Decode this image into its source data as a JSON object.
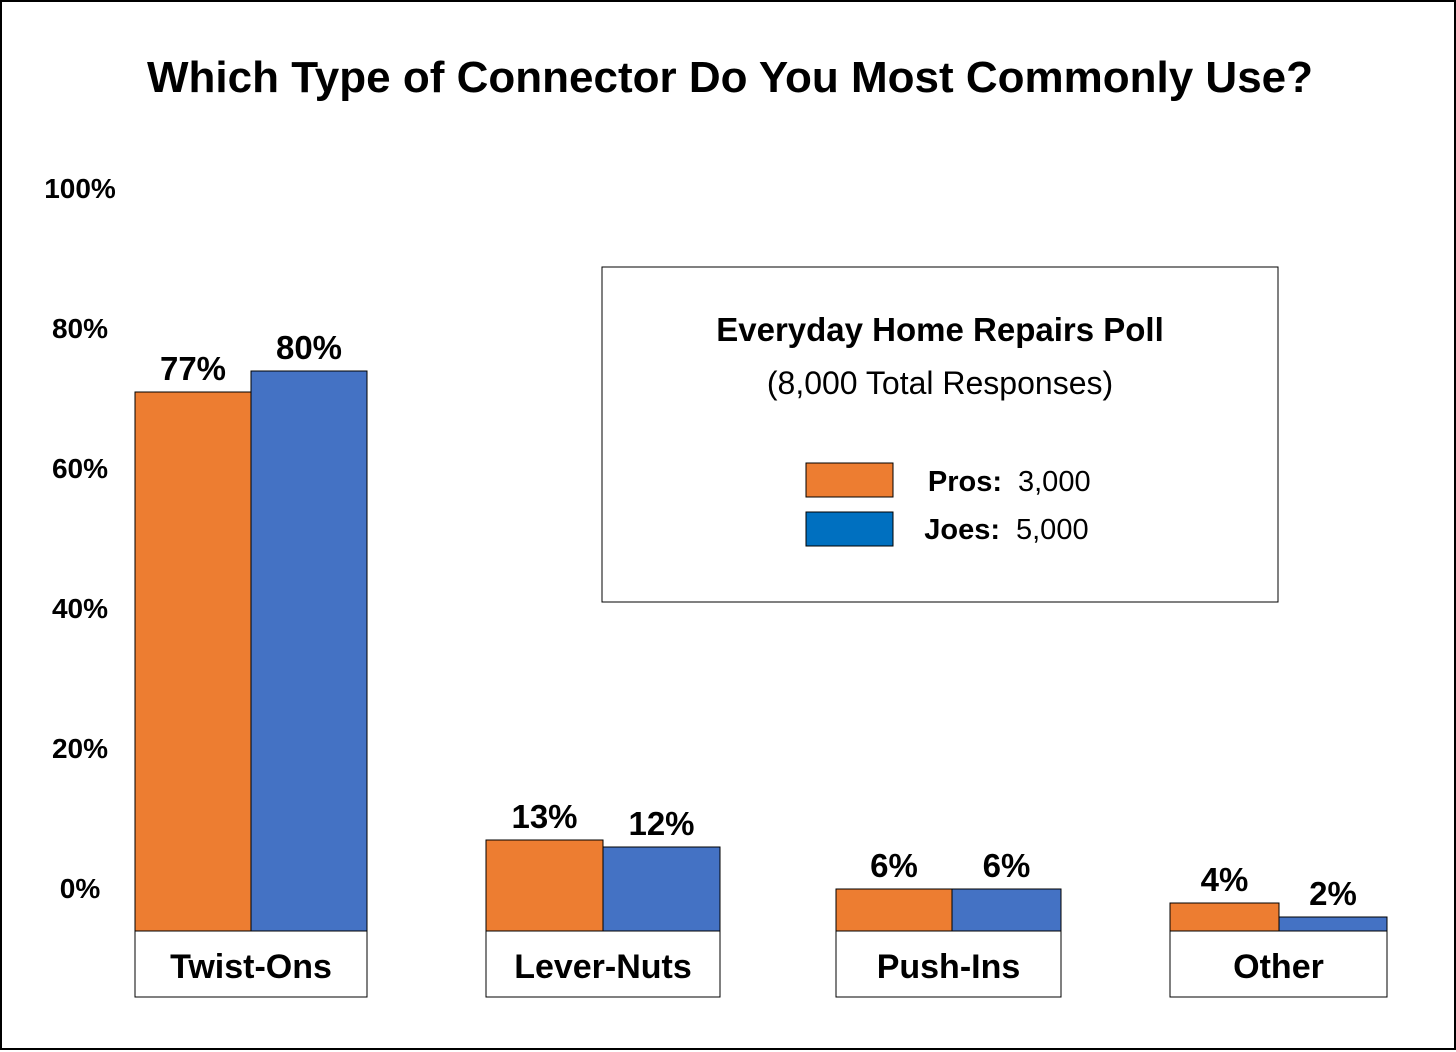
{
  "chart_data": {
    "type": "bar",
    "title": "Which Type of Connector Do You Most Commonly Use?",
    "categories": [
      "Twist-Ons",
      "Lever-Nuts",
      "Push-Ins",
      "Other"
    ],
    "series": [
      {
        "name": "Pros",
        "color": "#ED7D31",
        "values": [
          77,
          13,
          6,
          4
        ],
        "labels": [
          "77%",
          "13%",
          "6%",
          "4%"
        ]
      },
      {
        "name": "Joes",
        "color": "#4472C4",
        "values": [
          80,
          12,
          6,
          2
        ],
        "labels": [
          "80%",
          "12%",
          "6%",
          "2%"
        ]
      }
    ],
    "ylim": [
      0,
      100
    ],
    "yticks": [
      "0%",
      "20%",
      "40%",
      "60%",
      "80%",
      "100%"
    ],
    "grid": false,
    "legend": {
      "placement": "top-right",
      "title": "Everyday Home Repairs Poll",
      "subtitle": "(8,000 Total Responses)",
      "entries": [
        {
          "label": "Pros:",
          "value": "3,000",
          "color": "#ED7D31"
        },
        {
          "label": "Joes:",
          "value": "5,000",
          "color": "#0070C0"
        }
      ]
    }
  }
}
